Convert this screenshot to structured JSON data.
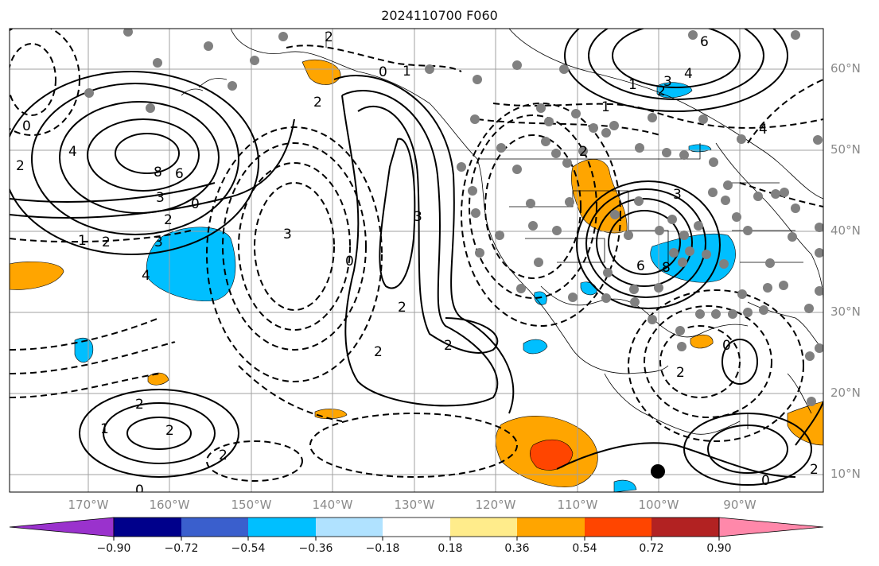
{
  "title": "2024110700 F060",
  "lat_labels": [
    "60°N",
    "50°N",
    "40°N",
    "30°N",
    "20°N",
    "10°N"
  ],
  "lon_labels": [
    "170°W",
    "160°W",
    "150°W",
    "140°W",
    "130°W",
    "120°W",
    "110°W",
    "100°W",
    "90°W"
  ],
  "colorbar": {
    "ticks": [
      "−0.90",
      "−0.72",
      "−0.54",
      "−0.36",
      "−0.18",
      "0.18",
      "0.36",
      "0.54",
      "0.72",
      "0.90"
    ],
    "colors": [
      "#9a32cd",
      "#00008b",
      "#3a5fcd",
      "#00bfff",
      "#b0e2ff",
      "#ffffff",
      "#ffec8b",
      "#ffa500",
      "#ff4500",
      "#b22222",
      "#ff88aa"
    ]
  },
  "contour_labels": [
    "2",
    "0",
    "1",
    "2",
    "0",
    "2",
    "4",
    "8",
    "6",
    "3",
    "2",
    "0",
    "1",
    "2",
    "3",
    "4",
    "0",
    "3",
    "2",
    "3",
    "2",
    "2",
    "1",
    "2",
    "2",
    "2",
    "0",
    "6",
    "4",
    "2",
    "3",
    "1",
    "2",
    "8",
    "6",
    "4",
    "0",
    "2",
    "0",
    "2",
    "3",
    "1"
  ]
}
